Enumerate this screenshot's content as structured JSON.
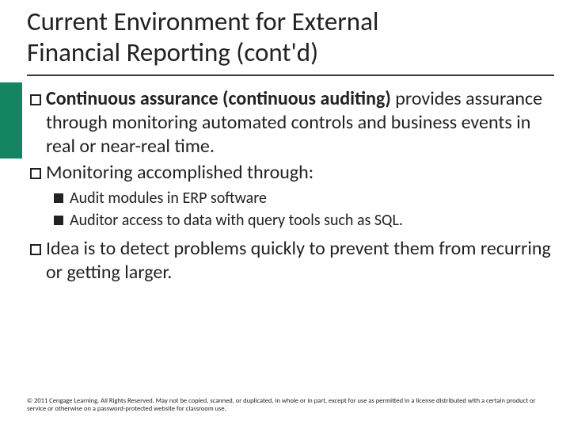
{
  "colors": {
    "sidebar": "#148462",
    "text": "#222222",
    "rule": "#3a3a3a",
    "background": "#ffffff"
  },
  "typography": {
    "title_fontsize": 33,
    "body_fontsize": 24,
    "sub_fontsize": 20,
    "copyright_fontsize": 8.5,
    "font_family": "Calibri"
  },
  "title": {
    "line1": "Current Environment for External",
    "line2": "Financial Reporting (cont'd)"
  },
  "bullets": [
    {
      "bold": "Continuous assurance (continuous auditing)",
      "rest": " provides assurance through monitoring automated controls and business events in real or near-real time."
    },
    {
      "bold": "",
      "rest": "Monitoring accomplished through:"
    }
  ],
  "subbullets": [
    "Audit modules in ERP software",
    "Auditor access to data with query tools such as SQL."
  ],
  "bullets2": [
    {
      "bold": "",
      "rest": "Idea is to detect problems quickly to prevent them from recurring or getting larger."
    }
  ],
  "copyright": "© 2011 Cengage Learning. All Rights Reserved. May not be copied, scanned, or duplicated, in whole or in part, except for use as permitted in a license distributed with a certain product or service or otherwise on a password-protected website for classroom use."
}
